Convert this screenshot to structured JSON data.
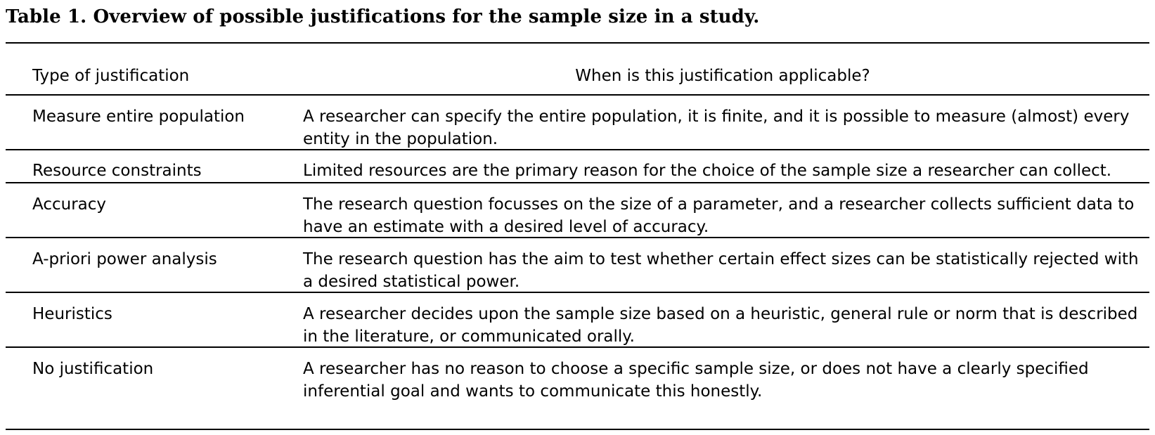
{
  "table": {
    "caption": "Table 1. Overview of possible justifications for the sample size in a study.",
    "headers": [
      "Type of justification",
      "When is this justification applicable?"
    ],
    "rows": [
      {
        "type": "Measure entire population",
        "when": "A researcher can specify the entire population, it is finite, and it is possible to measure (almost) every entity in the population."
      },
      {
        "type": "Resource constraints",
        "when": "Limited resources are the primary reason for the choice of the sample size a researcher can collect."
      },
      {
        "type": "Accuracy",
        "when": "The research question focusses on the size of a parameter, and a researcher collects sufficient data to have an estimate with a desired level of accuracy."
      },
      {
        "type": "A-priori power analysis",
        "when": "The research question has the aim to test whether certain effect sizes can be statistically rejected with a desired statistical power."
      },
      {
        "type": "Heuristics",
        "when": "A researcher decides upon the sample size based on a heuristic, general rule or norm that is described in the literature, or communicated orally."
      },
      {
        "type": "No justification",
        "when": "A researcher has no reason to choose a specific sample size, or does not have a clearly specified inferential goal and wants to communicate this honestly."
      }
    ]
  }
}
